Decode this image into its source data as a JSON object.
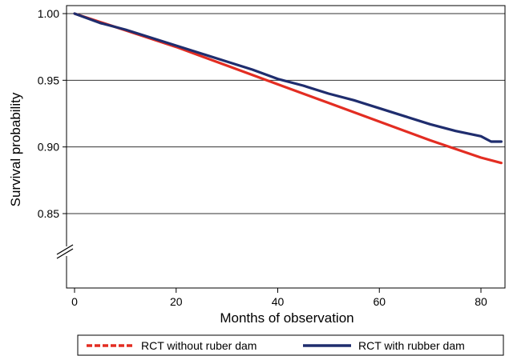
{
  "chart_data": {
    "type": "line",
    "title": "",
    "xlabel": "Months of observation",
    "ylabel": "Survival probability",
    "xlim": [
      0,
      84
    ],
    "ylim": [
      0.85,
      1.0
    ],
    "x_ticks": [
      0,
      20,
      40,
      60,
      80
    ],
    "x_tick_labels": [
      "0",
      "20",
      "40",
      "60",
      "80"
    ],
    "y_ticks": [
      0.85,
      0.9,
      0.95,
      1.0
    ],
    "y_tick_labels": [
      "0.85",
      "0.90",
      "0.95",
      "1.00"
    ],
    "y_axis_break": true,
    "grid": "horizontal",
    "legend_position": "bottom",
    "series": [
      {
        "name": "RCT without ruber dam",
        "color": "#e32d22",
        "style": "solid",
        "legend_style": "dashed",
        "x": [
          0,
          10,
          20,
          30,
          40,
          50,
          60,
          70,
          80,
          84
        ],
        "y": [
          1.0,
          0.9875,
          0.975,
          0.961,
          0.947,
          0.933,
          0.919,
          0.905,
          0.892,
          0.888
        ]
      },
      {
        "name": "RCT with rubber dam",
        "color": "#1f2d6e",
        "style": "solid",
        "legend_style": "solid",
        "x": [
          0,
          5,
          10,
          15,
          20,
          25,
          30,
          35,
          40,
          45,
          50,
          55,
          60,
          65,
          70,
          75,
          80,
          82,
          84
        ],
        "y": [
          1.0,
          0.993,
          0.988,
          0.982,
          0.976,
          0.97,
          0.964,
          0.958,
          0.951,
          0.946,
          0.94,
          0.935,
          0.929,
          0.923,
          0.917,
          0.912,
          0.908,
          0.904,
          0.904
        ]
      }
    ]
  }
}
